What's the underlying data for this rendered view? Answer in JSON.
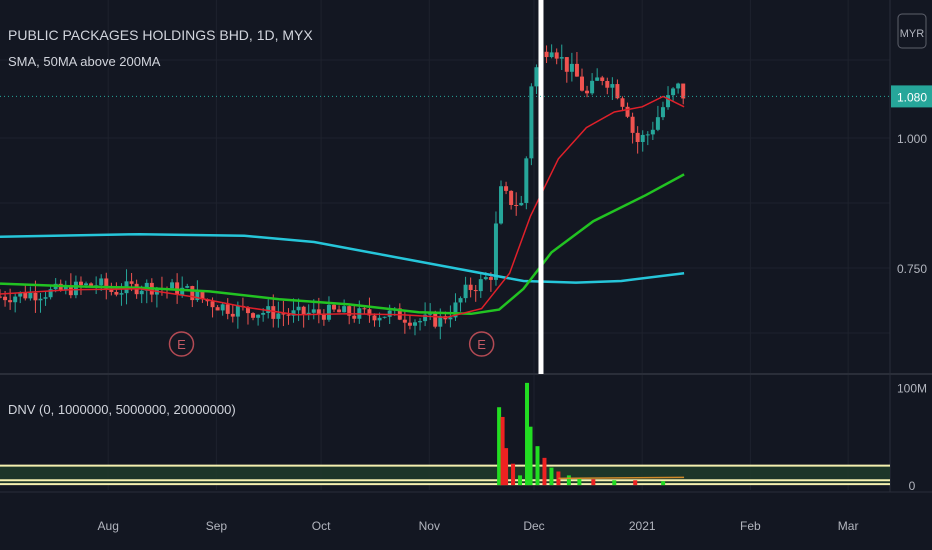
{
  "header": {
    "symbol_title": "PUBLIC PACKAGES HOLDINGS BHD, 1D, MYX",
    "indicator_label": "SMA, 50MA above 200MA",
    "currency_button": "MYR"
  },
  "price_pane": {
    "last_price_label": "1.080",
    "earnings_markers": [
      {
        "label": "E",
        "date_index": 52
      },
      {
        "label": "E",
        "date_index": 138
      }
    ]
  },
  "volume_pane": {
    "indicator_label": "DNV (0, 1000000, 5000000, 20000000)"
  },
  "colors": {
    "background": "#131722",
    "up": "#26a69a",
    "down": "#ef5350",
    "sma200": "#26c6da",
    "sma50": "#22c322",
    "sma_short": "#e0202a",
    "volume_green": "#22dd22",
    "volume_red": "#ee2222",
    "highlight": "#ffffff"
  },
  "chart_data": [
    {
      "type": "candlestick",
      "x_axis": {
        "ticks": [
          "Aug",
          "Sep",
          "Oct",
          "Nov",
          "Dec",
          "2021",
          "Feb",
          "Mar"
        ],
        "tick_days": [
          31,
          62,
          92,
          123,
          153,
          184,
          215,
          243
        ],
        "range_days": [
          0,
          255
        ]
      },
      "y_axis": {
        "ticks": [
          "1.000",
          "0.750"
        ],
        "tick_values": [
          1.0,
          0.75
        ],
        "range": [
          0.55,
          1.25
        ]
      },
      "last_price": 1.08,
      "highlight_day": 155,
      "series": [
        {
          "name": "",
          "kind": "ohlc_daily",
          "close_path": [
            [
              0,
              0.695
            ],
            [
              8,
              0.7
            ],
            [
              16,
              0.705
            ],
            [
              24,
              0.715
            ],
            [
              28,
              0.72
            ],
            [
              32,
              0.705
            ],
            [
              40,
              0.715
            ],
            [
              48,
              0.712
            ],
            [
              54,
              0.705
            ],
            [
              58,
              0.69
            ],
            [
              62,
              0.68
            ],
            [
              66,
              0.672
            ],
            [
              70,
              0.668
            ],
            [
              76,
              0.665
            ],
            [
              84,
              0.66
            ],
            [
              90,
              0.663
            ],
            [
              96,
              0.665
            ],
            [
              102,
              0.66
            ],
            [
              108,
              0.662
            ],
            [
              114,
              0.66
            ],
            [
              120,
              0.648
            ],
            [
              126,
              0.65
            ],
            [
              130,
              0.67
            ],
            [
              134,
              0.71
            ],
            [
              138,
              0.722
            ],
            [
              141,
              0.74
            ],
            [
              143,
              0.9
            ],
            [
              146,
              0.88
            ],
            [
              150,
              0.87
            ],
            [
              152,
              1.1
            ],
            [
              155,
              1.16
            ],
            [
              158,
              1.18
            ],
            [
              162,
              1.14
            ],
            [
              165,
              1.12
            ],
            [
              168,
              1.08
            ],
            [
              172,
              1.12
            ],
            [
              176,
              1.1
            ],
            [
              180,
              1.05
            ],
            [
              182,
              0.99
            ],
            [
              186,
              1.01
            ],
            [
              190,
              1.06
            ],
            [
              194,
              1.1
            ],
            [
              196,
              1.08
            ]
          ]
        },
        {
          "name": "",
          "kind": "sma200",
          "points": [
            [
              0,
              0.81
            ],
            [
              40,
              0.815
            ],
            [
              70,
              0.812
            ],
            [
              90,
              0.8
            ],
            [
              110,
              0.775
            ],
            [
              130,
              0.75
            ],
            [
              150,
              0.725
            ],
            [
              165,
              0.722
            ],
            [
              178,
              0.725
            ],
            [
              196,
              0.74
            ]
          ]
        },
        {
          "name": "",
          "kind": "sma50",
          "points": [
            [
              0,
              0.72
            ],
            [
              20,
              0.715
            ],
            [
              40,
              0.712
            ],
            [
              60,
              0.705
            ],
            [
              80,
              0.69
            ],
            [
              100,
              0.68
            ],
            [
              120,
              0.665
            ],
            [
              135,
              0.662
            ],
            [
              143,
              0.67
            ],
            [
              150,
              0.71
            ],
            [
              158,
              0.78
            ],
            [
              170,
              0.84
            ],
            [
              185,
              0.89
            ],
            [
              196,
              0.93
            ]
          ]
        },
        {
          "name": "",
          "kind": "sma_short",
          "points": [
            [
              0,
              0.7
            ],
            [
              20,
              0.708
            ],
            [
              40,
              0.71
            ],
            [
              55,
              0.695
            ],
            [
              70,
              0.675
            ],
            [
              85,
              0.66
            ],
            [
              100,
              0.662
            ],
            [
              115,
              0.66
            ],
            [
              128,
              0.655
            ],
            [
              138,
              0.672
            ],
            [
              146,
              0.74
            ],
            [
              152,
              0.85
            ],
            [
              160,
              0.96
            ],
            [
              168,
              1.02
            ],
            [
              176,
              1.05
            ],
            [
              184,
              1.06
            ],
            [
              190,
              1.08
            ],
            [
              196,
              1.06
            ]
          ]
        }
      ]
    },
    {
      "type": "bar",
      "title": "DNV (0, 1000000, 5000000, 20000000)",
      "y_axis": {
        "ticks": [
          "100M",
          "0"
        ],
        "tick_values": [
          100,
          0
        ],
        "range": [
          -5,
          110
        ]
      },
      "bars": [
        {
          "day": 143,
          "value": 80,
          "color": "green"
        },
        {
          "day": 144,
          "value": 70,
          "color": "red"
        },
        {
          "day": 145,
          "value": 38,
          "color": "red"
        },
        {
          "day": 147,
          "value": 22,
          "color": "red"
        },
        {
          "day": 149,
          "value": 10,
          "color": "green"
        },
        {
          "day": 151,
          "value": 105,
          "color": "green"
        },
        {
          "day": 152,
          "value": 60,
          "color": "green"
        },
        {
          "day": 154,
          "value": 40,
          "color": "green"
        },
        {
          "day": 156,
          "value": 28,
          "color": "red"
        },
        {
          "day": 158,
          "value": 18,
          "color": "green"
        },
        {
          "day": 160,
          "value": 14,
          "color": "red"
        },
        {
          "day": 163,
          "value": 10,
          "color": "green"
        },
        {
          "day": 166,
          "value": 7,
          "color": "green"
        },
        {
          "day": 170,
          "value": 6,
          "color": "red"
        },
        {
          "day": 176,
          "value": 5,
          "color": "green"
        },
        {
          "day": 182,
          "value": 5,
          "color": "red"
        },
        {
          "day": 190,
          "value": 4,
          "color": "green"
        }
      ],
      "threshold_lines": [
        20,
        5,
        1
      ]
    }
  ]
}
